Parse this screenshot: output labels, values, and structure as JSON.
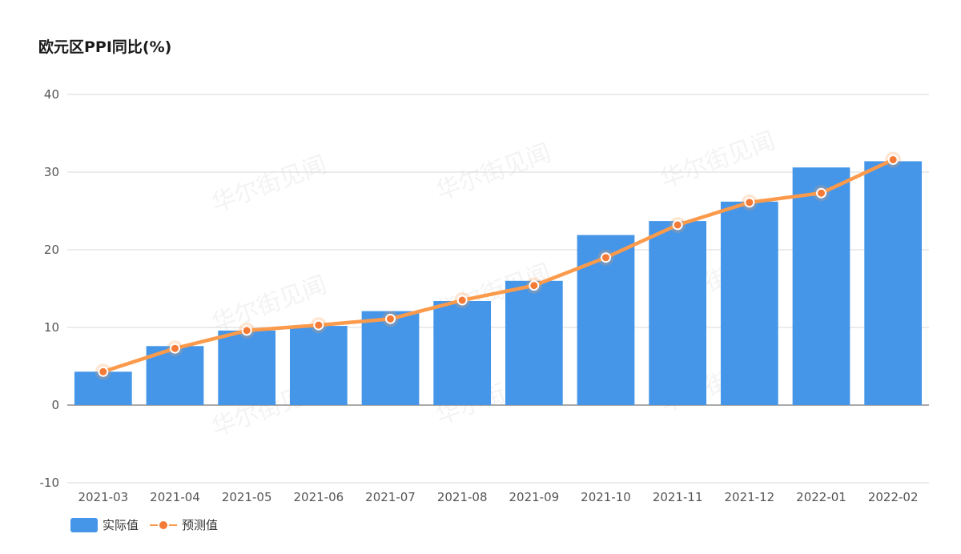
{
  "watermark_text": "华尔街见闻",
  "colors": {
    "bar": "#4596e8",
    "line": "#fb9a4b",
    "dot": "#f47a36",
    "grid": "#d9d9d9",
    "axis": "#555555"
  },
  "chart_data": {
    "type": "bar",
    "title": "欧元区PPI同比(%)",
    "xlabel": "",
    "ylabel": "",
    "ylim": [
      -10,
      40
    ],
    "yticks": [
      -10,
      0,
      10,
      20,
      30,
      40
    ],
    "grid": true,
    "legend_position": "bottom-left",
    "categories": [
      "2021-03",
      "2021-04",
      "2021-05",
      "2021-06",
      "2021-07",
      "2021-08",
      "2021-09",
      "2021-10",
      "2021-11",
      "2021-12",
      "2022-01",
      "2022-02"
    ],
    "series": [
      {
        "name": "实际值",
        "type": "bar",
        "values": [
          4.3,
          7.6,
          9.6,
          10.2,
          12.1,
          13.4,
          16.0,
          21.9,
          23.7,
          26.2,
          30.6,
          31.4
        ]
      },
      {
        "name": "预测值",
        "type": "line",
        "values": [
          4.3,
          7.3,
          9.6,
          10.3,
          11.1,
          13.5,
          15.4,
          19.0,
          23.2,
          26.1,
          27.3,
          31.6
        ]
      }
    ]
  }
}
